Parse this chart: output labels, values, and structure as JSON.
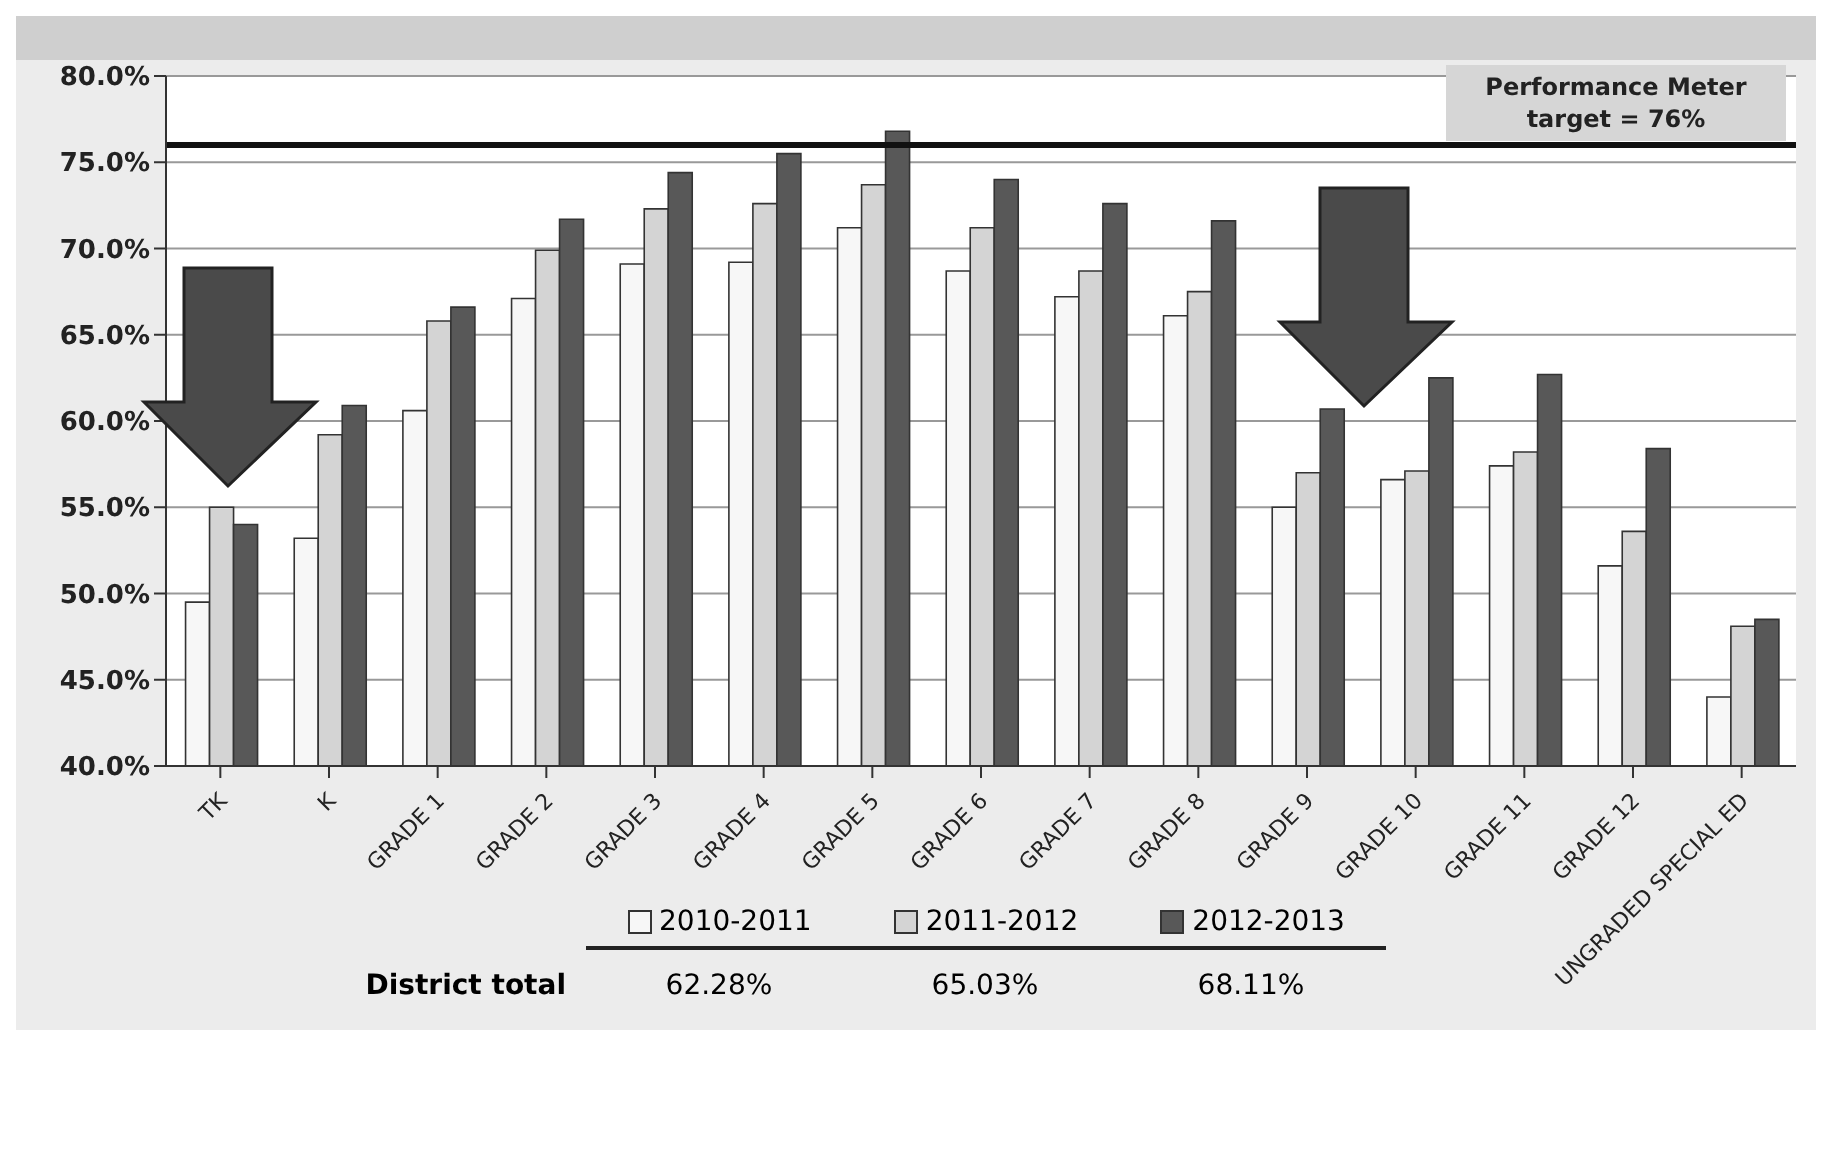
{
  "chart_data": {
    "type": "bar",
    "categories": [
      "TK",
      "K",
      "GRADE 1",
      "GRADE 2",
      "GRADE 3",
      "GRADE 4",
      "GRADE 5",
      "GRADE 6",
      "GRADE 7",
      "GRADE 8",
      "GRADE 9",
      "GRADE 10",
      "GRADE 11",
      "GRADE 12",
      "UNGRADED SPECIAL ED"
    ],
    "series": [
      {
        "name": "2010-2011",
        "color": "#f7f7f7",
        "values": [
          49.5,
          53.2,
          60.6,
          67.1,
          69.1,
          69.2,
          71.2,
          68.7,
          67.2,
          66.1,
          55.0,
          56.6,
          57.4,
          51.6,
          44.0
        ]
      },
      {
        "name": "2011-2012",
        "color": "#d4d4d4",
        "values": [
          55.0,
          59.2,
          65.8,
          69.9,
          72.3,
          72.6,
          73.7,
          71.2,
          68.7,
          67.5,
          57.0,
          57.1,
          58.2,
          53.6,
          48.1
        ]
      },
      {
        "name": "2012-2013",
        "color": "#585858",
        "values": [
          54.0,
          60.9,
          66.6,
          71.7,
          74.4,
          75.5,
          76.8,
          74.0,
          72.6,
          71.6,
          60.7,
          62.5,
          62.7,
          58.4,
          48.5
        ]
      }
    ],
    "ylim": [
      40,
      80
    ],
    "yticks": [
      {
        "value": 40,
        "label": "40.0%"
      },
      {
        "value": 45,
        "label": "45.0%"
      },
      {
        "value": 50,
        "label": "50.0%"
      },
      {
        "value": 55,
        "label": "55.0%"
      },
      {
        "value": 60,
        "label": "60.0%"
      },
      {
        "value": 65,
        "label": "65.0%"
      },
      {
        "value": 70,
        "label": "70.0%"
      },
      {
        "value": 75,
        "label": "75.0%"
      },
      {
        "value": 80,
        "label": "80.0%"
      }
    ],
    "ref_lines": [
      {
        "axis": "y",
        "value": 76,
        "label": "Performance Meter target = 76%",
        "color": "#111111"
      }
    ],
    "grid": "y",
    "legend": "bottom",
    "annotations": [
      "District total",
      "62.28%",
      "65.03%",
      "68.11%"
    ]
  }
}
